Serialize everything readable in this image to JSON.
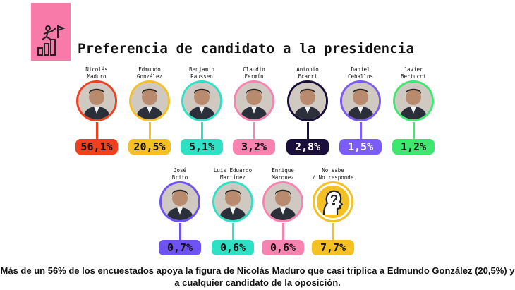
{
  "title": "Preferencia de candidato a la presidencia",
  "icon": "climbing-to-flag-icon",
  "chart_data": {
    "type": "bar",
    "title": "Preferencia de candidato a la presidencia",
    "unit": "%",
    "categories": [
      "Nicolás Maduro",
      "Edmundo González",
      "Benjamín Rausseo",
      "Claudio Fermín",
      "Antonio Ecarri",
      "Daniel Ceballos",
      "Javier Bertucci",
      "José Brito",
      "Luis Eduardo Martínez",
      "Enrique Márquez",
      "No sabe / No responde"
    ],
    "values": [
      56.1,
      20.5,
      5.1,
      3.2,
      2.8,
      1.5,
      1.2,
      0.7,
      0.6,
      0.6,
      7.7
    ]
  },
  "candidates": [
    {
      "name": "Nicolás\nMaduro",
      "label": "56,1%",
      "color": "#f0401e",
      "text": "#111111"
    },
    {
      "name": "Edmundo\nGonzález",
      "label": "20,5%",
      "color": "#f5c024",
      "text": "#111111"
    },
    {
      "name": "Benjamín\nRausseo",
      "label": "5,1%",
      "color": "#2ee0c4",
      "text": "#111111"
    },
    {
      "name": "Claudio\nFermín",
      "label": "3,2%",
      "color": "#f882b0",
      "text": "#111111"
    },
    {
      "name": "Antonio\nEcarri",
      "label": "2,8%",
      "color": "#1a0f3a",
      "text": "#ffffff"
    },
    {
      "name": "Daniel\nCeballos",
      "label": "1,5%",
      "color": "#7b5cf7",
      "text": "#ffffff"
    },
    {
      "name": "Javier\nBertucci",
      "label": "1,2%",
      "color": "#3ee870",
      "text": "#111111"
    },
    {
      "name": "José\nBrito",
      "label": "0,7%",
      "color": "#6f52f2",
      "text": "#111111"
    },
    {
      "name": "Luis Eduardo\nMartínez",
      "label": "0,6%",
      "color": "#2ee0c4",
      "text": "#111111"
    },
    {
      "name": "Enrique\nMárquez",
      "label": "0,6%",
      "color": "#f882b0",
      "text": "#111111"
    },
    {
      "name": "No sabe\n/ No responde",
      "label": "7,7%",
      "color": "#f5c024",
      "text": "#111111"
    }
  ],
  "caption": "Más de un 56% de los encuestados apoya la figura de Nicolás Maduro que casi triplica a Edmundo González (20,5%) y a cualquier candidato de la oposición."
}
